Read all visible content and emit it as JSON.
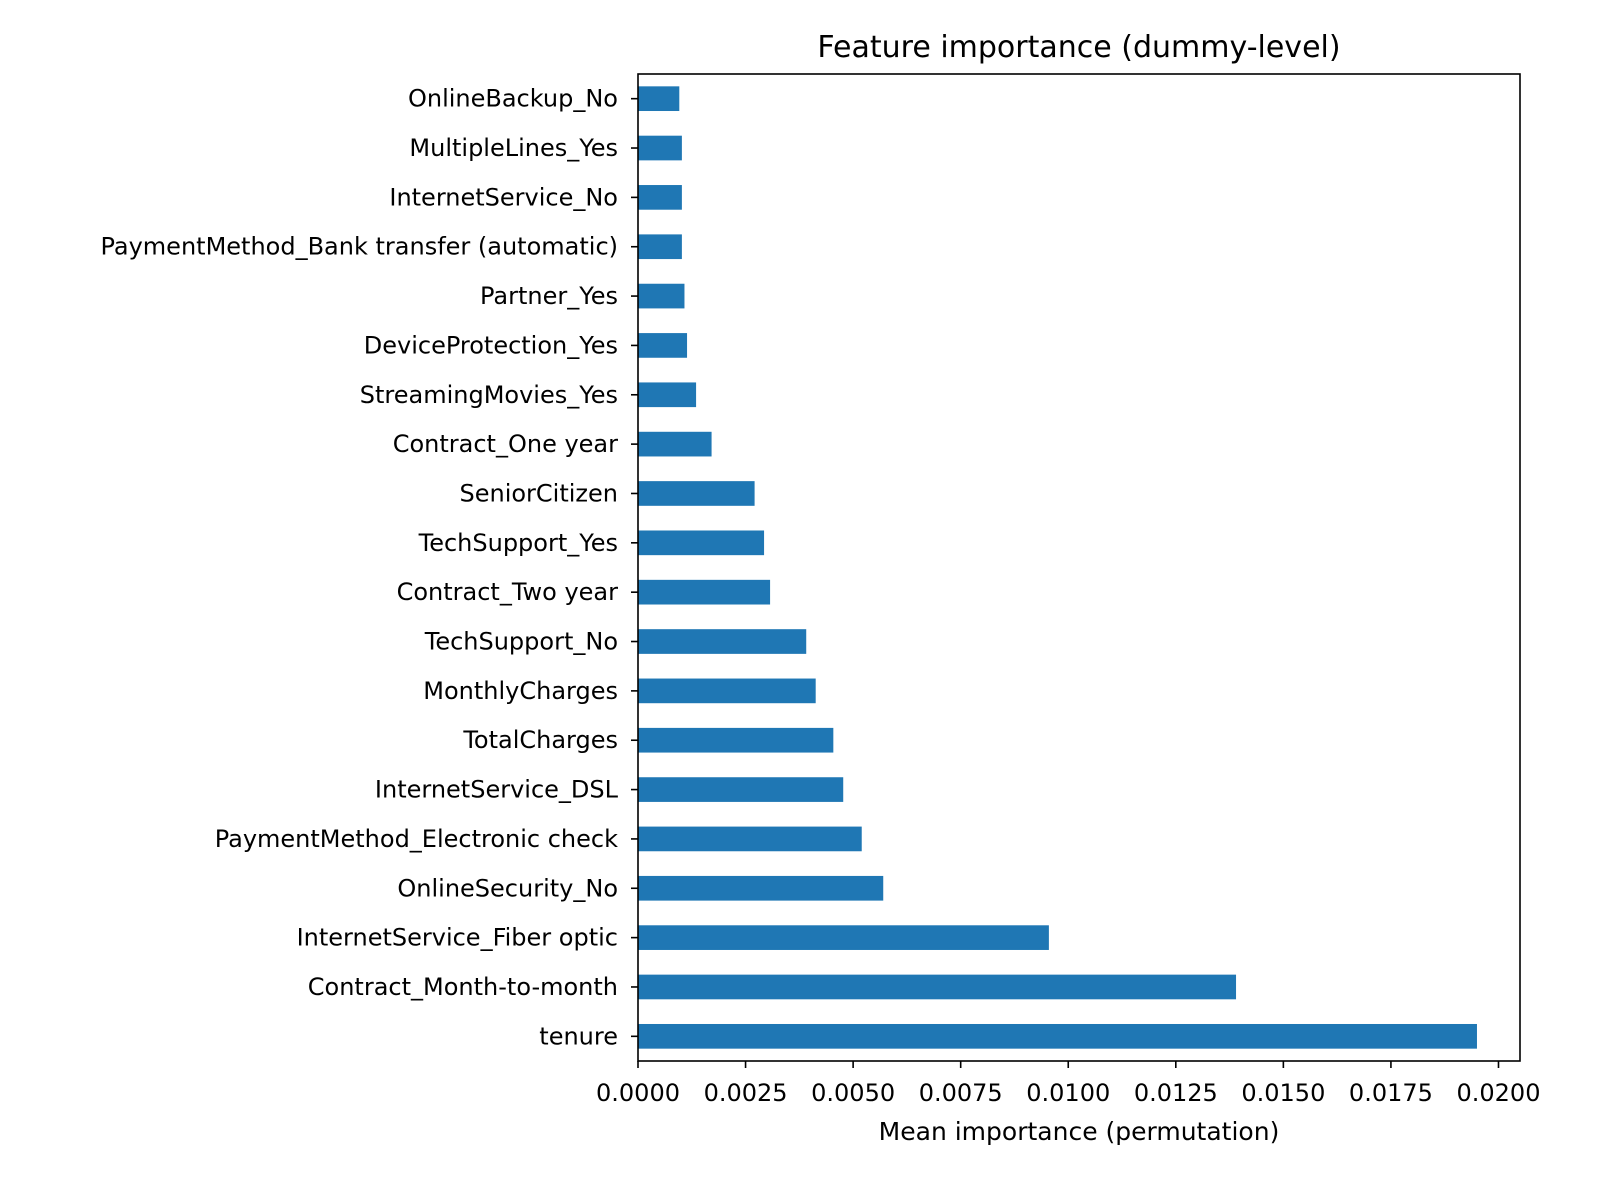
{
  "chart_data": {
    "type": "bar",
    "orientation": "horizontal",
    "title": "Feature importance (dummy-level)",
    "xlabel": "Mean importance (permutation)",
    "ylabel": "",
    "xlim": [
      0,
      0.0205
    ],
    "xticks": [
      0.0,
      0.0025,
      0.005,
      0.0075,
      0.01,
      0.0125,
      0.015,
      0.0175,
      0.02
    ],
    "xtick_labels": [
      "0.0000",
      "0.0025",
      "0.0050",
      "0.0075",
      "0.0100",
      "0.0125",
      "0.0150",
      "0.0175",
      "0.0200"
    ],
    "categories": [
      "tenure",
      "Contract_Month-to-month",
      "InternetService_Fiber optic",
      "OnlineSecurity_No",
      "PaymentMethod_Electronic check",
      "InternetService_DSL",
      "TotalCharges",
      "MonthlyCharges",
      "TechSupport_No",
      "Contract_Two year",
      "TechSupport_Yes",
      "SeniorCitizen",
      "Contract_One year",
      "StreamingMovies_Yes",
      "DeviceProtection_Yes",
      "Partner_Yes",
      "PaymentMethod_Bank transfer (automatic)",
      "InternetService_No",
      "MultipleLines_Yes",
      "OnlineBackup_No"
    ],
    "values": [
      0.0195,
      0.0139,
      0.00955,
      0.0057,
      0.0052,
      0.00477,
      0.00454,
      0.00413,
      0.00391,
      0.00307,
      0.00293,
      0.00271,
      0.00171,
      0.00135,
      0.00114,
      0.00108,
      0.00102,
      0.00102,
      0.00102,
      0.00096
    ],
    "bar_color": "#1f77b4",
    "grid": false,
    "legend": "none"
  }
}
